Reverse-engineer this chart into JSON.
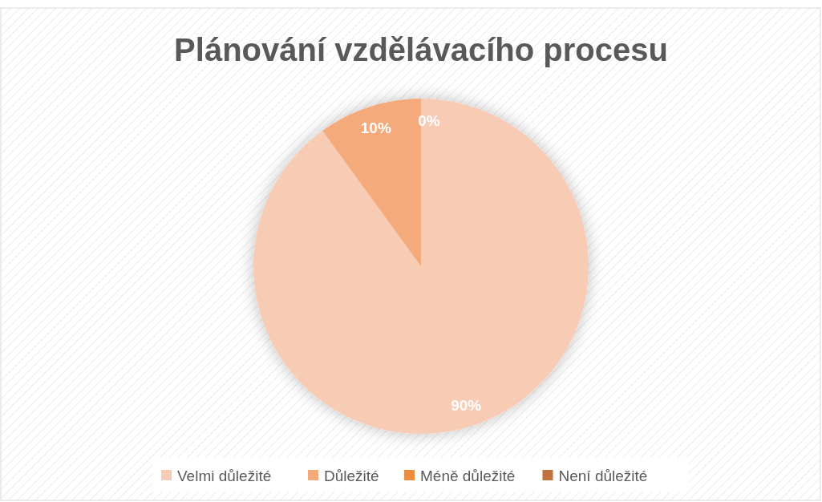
{
  "chart_data": {
    "type": "pie",
    "title": "Plánování vzdělávacího procesu",
    "categories": [
      "Velmi důležité",
      "Důležité",
      "Méně důležité",
      "Není důležité"
    ],
    "values": [
      90,
      10,
      0,
      0
    ],
    "colors": [
      "#f8cbb4",
      "#f5aa7c",
      "#ed8d3f",
      "#c0723e"
    ],
    "value_labels": [
      "90%",
      "10%",
      "0%",
      null
    ],
    "legend": "bottom"
  }
}
